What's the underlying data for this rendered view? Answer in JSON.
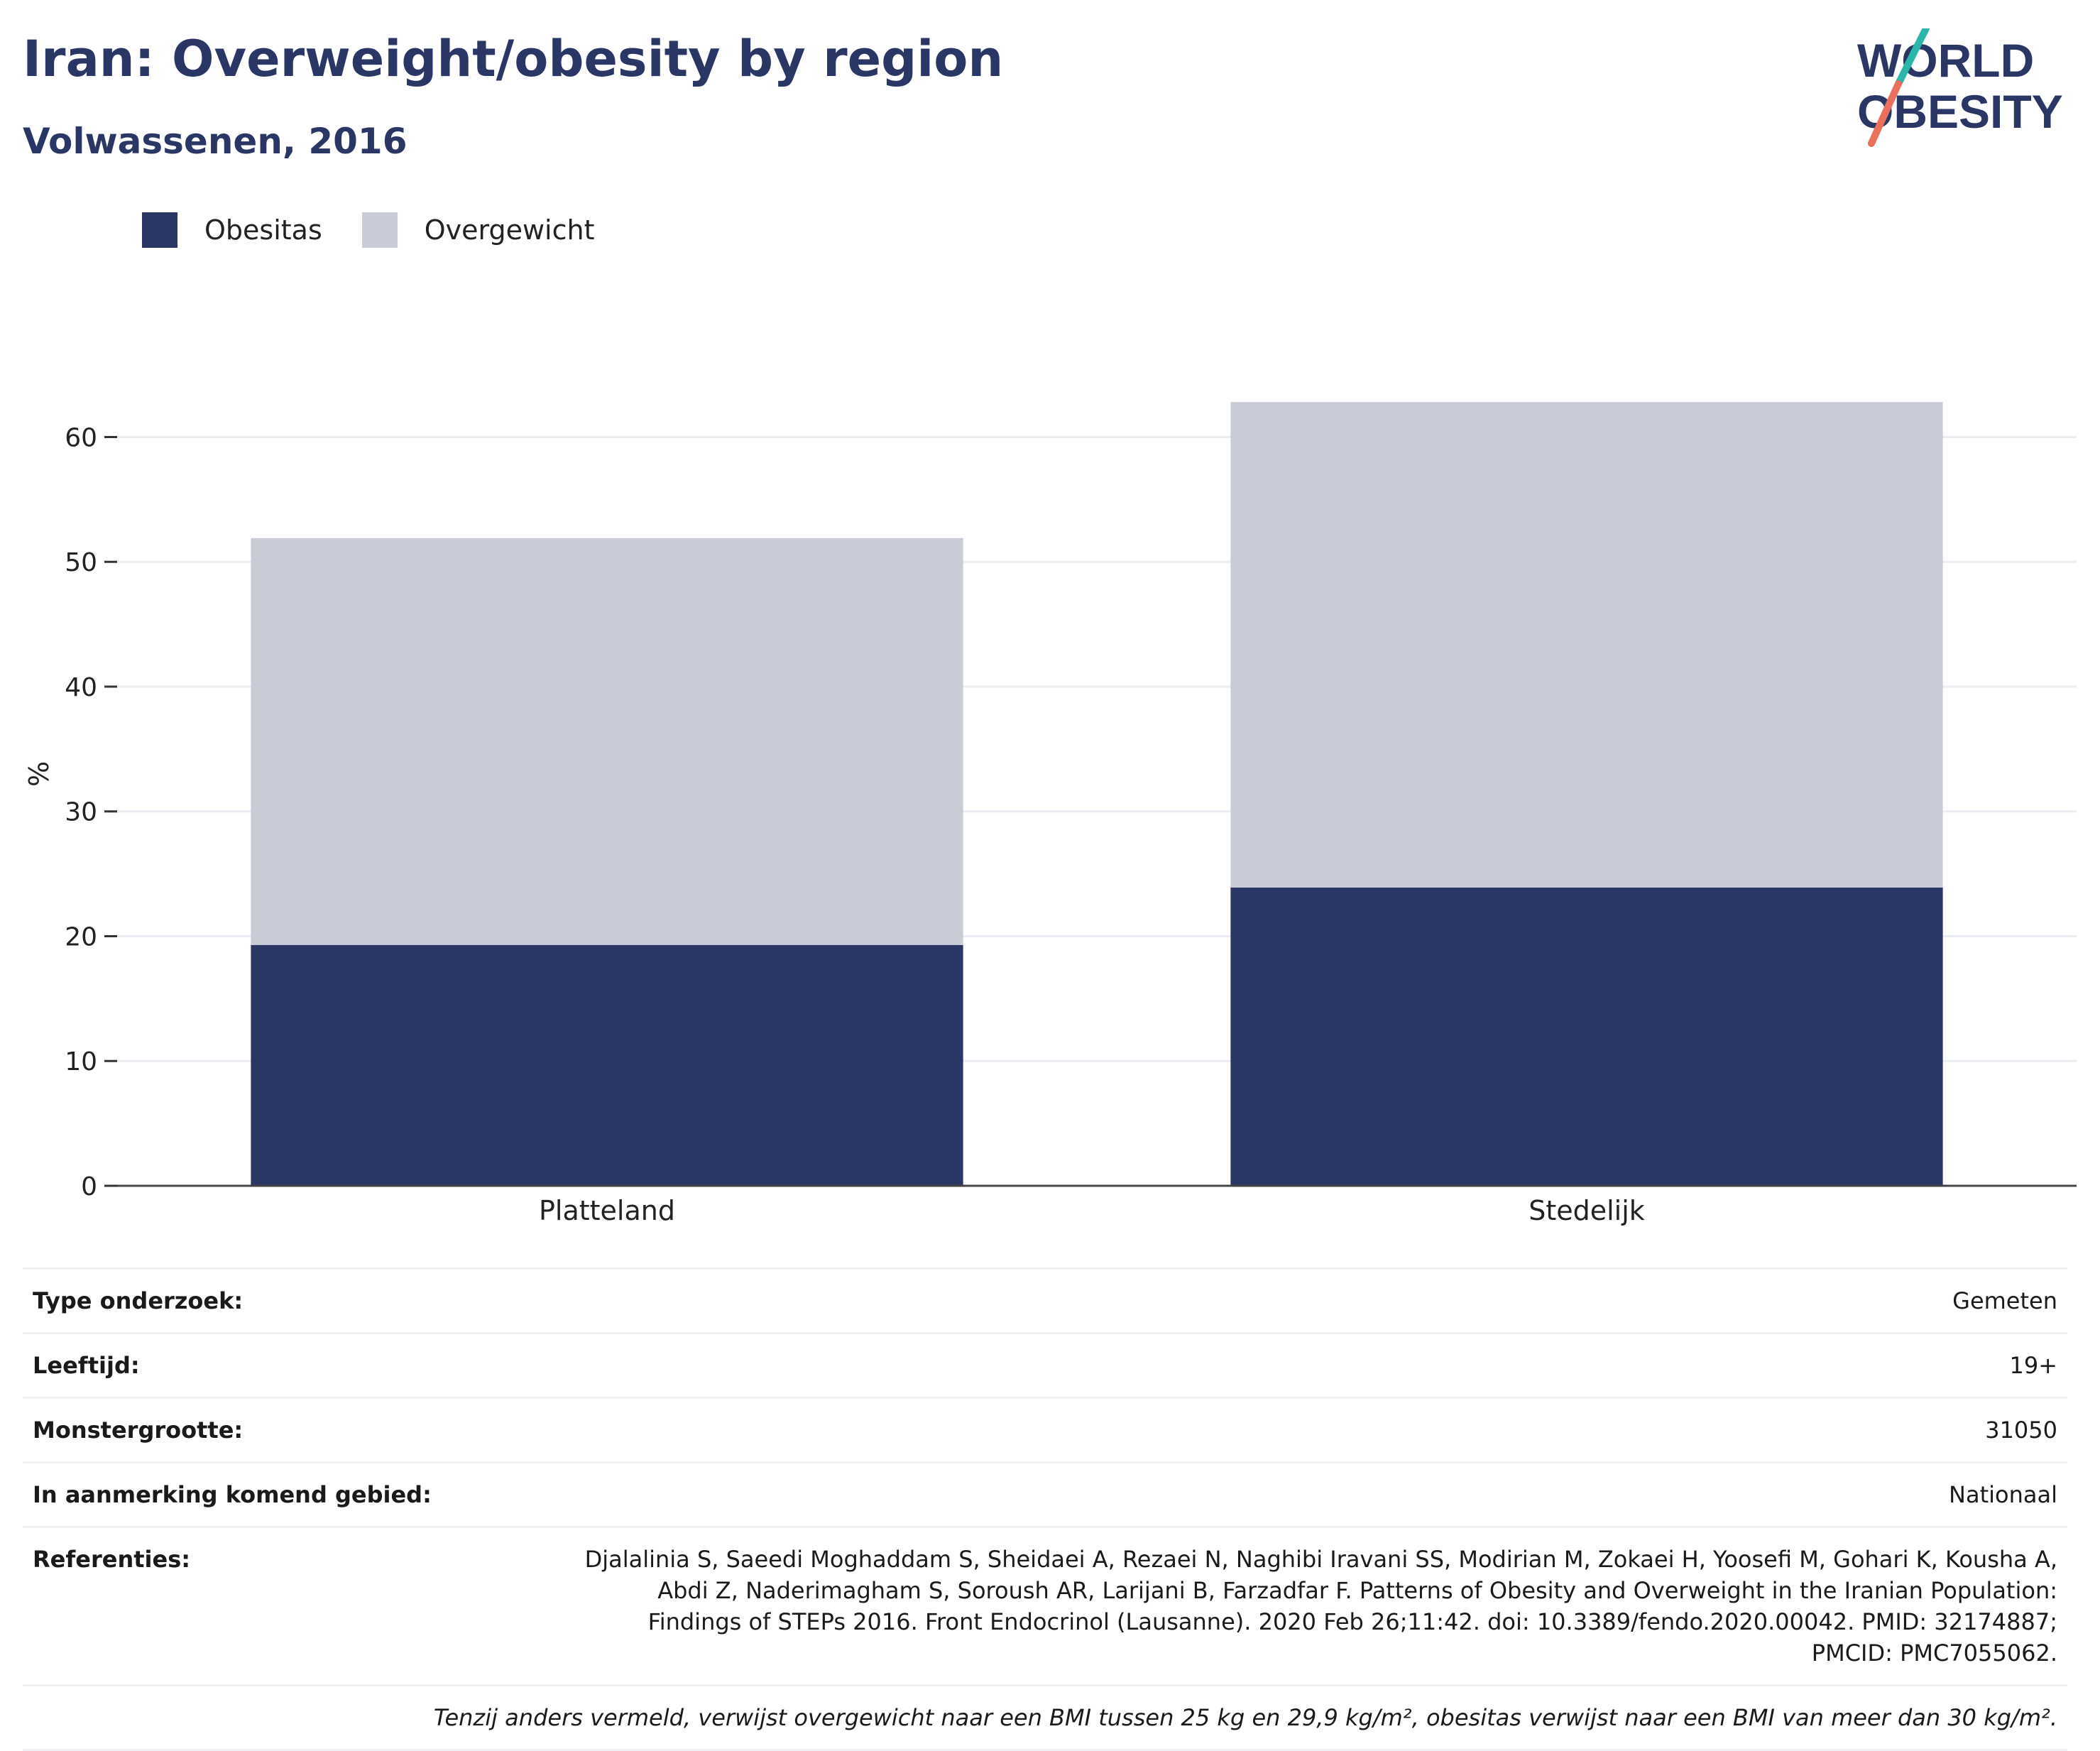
{
  "title": "Iran: Overweight/obesity by region",
  "subtitle": "Volwassenen, 2016",
  "logo": {
    "line1": "WORLD",
    "line2": "OBESITY"
  },
  "legend": [
    {
      "label": "Obesitas",
      "color": "#2a3663"
    },
    {
      "label": "Overgewicht",
      "color": "#c9ccd7"
    }
  ],
  "chart_data": {
    "type": "bar",
    "stacked": true,
    "categories": [
      "Platteland",
      "Stedelijk"
    ],
    "series": [
      {
        "name": "Obesitas",
        "values": [
          19.3,
          23.9
        ],
        "color": "#2a3663"
      },
      {
        "name": "Overgewicht",
        "values": [
          32.6,
          38.9
        ],
        "color": "#c9ccd7"
      }
    ],
    "ylabel": "%",
    "xlabel": "",
    "ylim": [
      0,
      66
    ],
    "yticks": [
      0,
      10,
      20,
      30,
      40,
      50,
      60
    ],
    "grid": true,
    "legend_position": "top-left"
  },
  "meta": {
    "survey_type_label": "Type onderzoek:",
    "survey_type_value": "Gemeten",
    "age_label": "Leeftijd:",
    "age_value": "19+",
    "sample_size_label": "Monstergrootte:",
    "sample_size_value": "31050",
    "area_label": "In aanmerking komend gebied:",
    "area_value": "Nationaal",
    "references_label": "Referenties:",
    "references_value": "Djalalinia S, Saeedi Moghaddam S, Sheidaei A, Rezaei N, Naghibi Iravani SS, Modirian M, Zokaei H, Yoosefi M, Gohari K, Kousha A, Abdi Z, Naderimagham S, Soroush AR, Larijani B, Farzadfar F. Patterns of Obesity and Overweight in the Iranian Population: Findings of STEPs 2016. Front Endocrinol (Lausanne). 2020 Feb 26;11:42. doi: 10.3389/fendo.2020.00042. PMID: 32174887; PMCID: PMC7055062.",
    "note": "Tenzij anders vermeld, verwijst overgewicht naar een BMI tussen 25 kg en 29,9 kg/m², obesitas verwijst naar een BMI van meer dan 30 kg/m²."
  }
}
